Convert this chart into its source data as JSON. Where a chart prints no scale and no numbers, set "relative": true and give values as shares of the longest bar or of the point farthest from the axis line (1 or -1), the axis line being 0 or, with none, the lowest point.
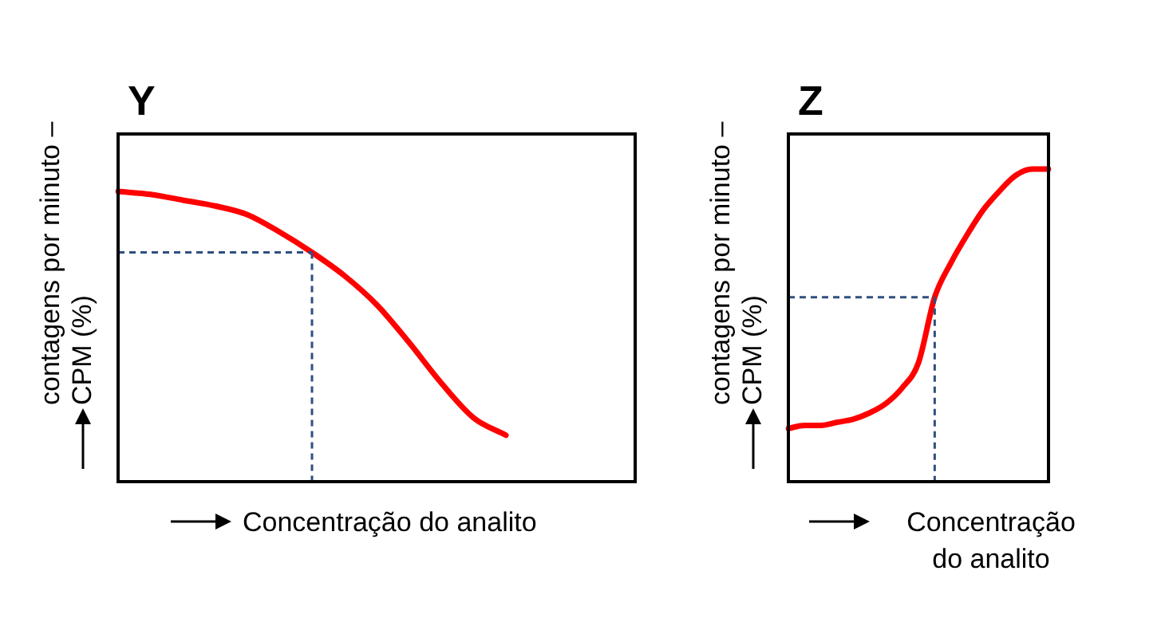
{
  "chart_data": [
    {
      "type": "line",
      "title": "Y",
      "xlabel": "Concentração do analito",
      "ylabel": "contagens por minuto – CPM (%)",
      "relative": true,
      "grid": false,
      "legend": false,
      "marker": "none",
      "line_style": "solid",
      "categories": [
        null,
        null,
        null,
        null,
        null,
        null,
        null,
        null,
        null,
        null,
        null,
        null,
        null,
        null,
        null,
        null,
        null
      ],
      "series": [
        {
          "color": "#ff0000",
          "values": [
            1.0,
            0.99,
            0.97,
            0.95,
            0.92,
            0.86,
            0.79,
            0.71,
            0.61,
            0.48,
            0.34,
            0.22,
            0.16,
            null,
            null,
            null,
            null
          ]
        }
      ],
      "ref_lines": [
        {
          "axis": "y",
          "value": 0.79,
          "color": "#2f4f7f",
          "line_style": "dashed"
        }
      ]
    },
    {
      "type": "line",
      "title": "Z",
      "xlabel": "Concentração do analito",
      "ylabel": "contagens por minuto – CPM (%)",
      "relative": true,
      "grid": false,
      "legend": false,
      "marker": "none",
      "line_style": "solid",
      "categories": [
        null,
        null,
        null,
        null,
        null,
        null,
        null,
        null,
        null,
        null,
        null,
        null,
        null,
        null,
        null,
        null,
        null
      ],
      "series": [
        {
          "color": "#ff0000",
          "values": [
            0.17,
            0.18,
            0.18,
            0.19,
            0.2,
            0.22,
            0.25,
            0.3,
            0.38,
            0.59,
            0.7,
            0.79,
            0.87,
            0.93,
            0.98,
            1.0,
            1.0
          ]
        }
      ],
      "ref_lines": [
        {
          "axis": "y",
          "value": 0.59,
          "color": "#2f4f7f",
          "line_style": "dashed"
        }
      ]
    }
  ]
}
